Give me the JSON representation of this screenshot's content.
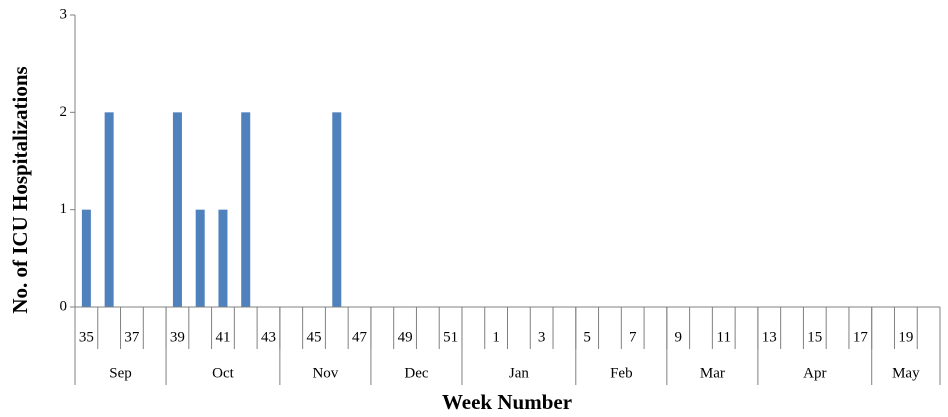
{
  "chart_data": {
    "type": "bar",
    "y_label": "No. of ICU Hospitalizations",
    "x_label": "Week Number",
    "categories": [
      "35",
      null,
      "37",
      null,
      "39",
      null,
      "41",
      null,
      "43",
      null,
      "45",
      null,
      "47",
      null,
      "49",
      null,
      "51",
      null,
      "1",
      null,
      "3",
      null,
      "5",
      null,
      "7",
      null,
      "9",
      null,
      "11",
      null,
      "13",
      null,
      "15",
      null,
      "17",
      null,
      "19",
      null
    ],
    "values": [
      1,
      2,
      0,
      0,
      2,
      1,
      1,
      2,
      0,
      0,
      0,
      2,
      0,
      0,
      0,
      0,
      0,
      0,
      0,
      0,
      0,
      0,
      0,
      0,
      0,
      0,
      0,
      0,
      0,
      0,
      0,
      0,
      0,
      0,
      0,
      0,
      0,
      0
    ],
    "color": "#4f81bd",
    "ylim": [
      0,
      3
    ],
    "yticks": [
      0,
      1,
      2,
      3
    ],
    "month_groups": [
      {
        "name": "Sep",
        "weeks": 4
      },
      {
        "name": "Oct",
        "weeks": 5
      },
      {
        "name": "Nov",
        "weeks": 4
      },
      {
        "name": "Dec",
        "weeks": 4
      },
      {
        "name": "Jan",
        "weeks": 5
      },
      {
        "name": "Feb",
        "weeks": 4
      },
      {
        "name": "Mar",
        "weeks": 4
      },
      {
        "name": "Apr",
        "weeks": 5
      },
      {
        "name": "May",
        "weeks": 3
      }
    ]
  }
}
